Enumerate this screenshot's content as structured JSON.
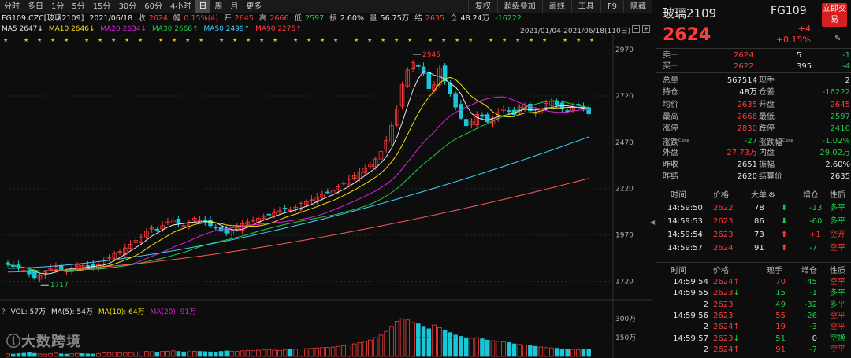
{
  "toolbar": {
    "items": [
      {
        "label": "分时",
        "active": false
      },
      {
        "label": "多日",
        "active": false
      },
      {
        "label": "1分",
        "active": false
      },
      {
        "label": "5分",
        "active": false
      },
      {
        "label": "15分",
        "active": false
      },
      {
        "label": "30分",
        "active": false
      },
      {
        "label": "60分",
        "active": false
      },
      {
        "label": "4小时",
        "active": false
      },
      {
        "label": "日",
        "active": true
      },
      {
        "label": "周",
        "active": false
      },
      {
        "label": "月",
        "active": false
      },
      {
        "label": "更多",
        "active": false
      }
    ],
    "right": [
      "复权",
      "超级叠加",
      "画线",
      "工具",
      "F9",
      "隐藏"
    ]
  },
  "info": {
    "name": "FG109.CZC[玻璃2109]",
    "date": "2021/06/18",
    "close_label": "收",
    "close": "2624",
    "amp_label": "幅",
    "amp": "0.15%(4)",
    "open_label": "开",
    "open": "2645",
    "high_label": "高",
    "high": "2666",
    "low_label": "低",
    "low": "2597",
    "swing_label": "振",
    "swing": "2.60%",
    "vol_label": "量",
    "vol": "56.75万",
    "settle_label": "结",
    "settle": "2635",
    "oi_label": "仓",
    "oi": "48.24万",
    "oichg": "-16222"
  },
  "ma": {
    "ma5": "MA5 2647↓",
    "ma10": "MA10 2646↓",
    "ma20": "MA20 2634↓",
    "ma30": "MA30 2668↑",
    "ma50": "MA50 2499↑",
    "ma90": "MA90 2275↑"
  },
  "range": "2021/01/04-2021/06/18(110日)",
  "annot": {
    "high": "2945",
    "low": "1717"
  },
  "vol_info": {
    "vol": "VOL: 57万",
    "ma5": "MA(5): 54万",
    "ma10": "MA(10): 64万",
    "ma20": "MA(20): 91万",
    "q": "?"
  },
  "watermark": "大数跨境",
  "colors": {
    "up": "#ff3b3b",
    "down": "#18c8d8",
    "ma5": "#e8e8e8",
    "ma10": "#f4e000",
    "ma20": "#e020e0",
    "ma30": "#1fcc47",
    "ma50": "#40d0ff",
    "ma90": "#ff5a5a"
  },
  "right": {
    "title": "玻璃2109",
    "code": "FG109",
    "price": "2624",
    "chg": "+4",
    "pct": "+0.15%",
    "btn": "立即交易",
    "edit": "✎",
    "orderbook": [
      {
        "label": "卖一",
        "price": "2624",
        "vol": "5",
        "chg": "-1"
      },
      {
        "label": "买一",
        "price": "2622",
        "vol": "395",
        "chg": "-4"
      }
    ],
    "stats": [
      {
        "l1": "总量",
        "v1": "567514",
        "l2": "现手",
        "v2": "2",
        "c1": "white",
        "c2": "white"
      },
      {
        "l1": "持仓",
        "v1": "48万",
        "l2": "仓差",
        "v2": "-16222",
        "c1": "white",
        "c2": "green"
      },
      {
        "l1": "均价",
        "v1": "2635",
        "l2": "开盘",
        "v2": "2645",
        "c1": "red",
        "c2": "red"
      },
      {
        "l1": "最高",
        "v1": "2666",
        "l2": "最低",
        "v2": "2597",
        "c1": "red",
        "c2": "green"
      },
      {
        "l1": "涨停",
        "v1": "2830",
        "l2": "跌停",
        "v2": "2410",
        "c1": "red",
        "c2": "green"
      },
      {
        "l1": "涨跌",
        "v1": "-27",
        "l2": "涨跌幅",
        "v2": "-1.02%",
        "c1": "green",
        "c2": "green",
        "sup1": "Close",
        "sup2": "Close"
      },
      {
        "l1": "外盘",
        "v1": "27.73万",
        "l2": "内盘",
        "v2": "29.02万",
        "c1": "red",
        "c2": "green"
      },
      {
        "l1": "昨收",
        "v1": "2651",
        "l2": "振幅",
        "v2": "2.60%",
        "c1": "white",
        "c2": "white"
      },
      {
        "l1": "昨结",
        "v1": "2620",
        "l2": "结算价",
        "v2": "2635",
        "c1": "white",
        "c2": "white"
      }
    ],
    "tick_header": [
      "时间",
      "价格",
      "大单",
      "⚙",
      "增仓",
      "性质"
    ],
    "big_ticks": [
      {
        "t": "14:59:50",
        "p": "2622",
        "v": "78",
        "d": "down",
        "oi": "-13",
        "n": "多平",
        "nc": "green"
      },
      {
        "t": "14:59:53",
        "p": "2623",
        "v": "86",
        "d": "down",
        "oi": "-60",
        "n": "多平",
        "nc": "green"
      },
      {
        "t": "14:59:54",
        "p": "2623",
        "v": "73",
        "d": "up",
        "oi": "+1",
        "n": "空开",
        "nc": "red"
      },
      {
        "t": "14:59:57",
        "p": "2624",
        "v": "91",
        "d": "up",
        "oi": "-7",
        "n": "空平",
        "nc": "red"
      }
    ],
    "tick_header2": [
      "时间",
      "价格",
      "现手",
      "增仓",
      "性质"
    ],
    "ticks": [
      {
        "t": "14:59:54",
        "p": "2624",
        "a": "↑",
        "ac": "red",
        "pc": "red",
        "v": "70",
        "vc": "red",
        "oi": "-45",
        "n": "空平",
        "nc": "red"
      },
      {
        "t": "14:59:55",
        "p": "2623",
        "a": "↓",
        "ac": "green",
        "pc": "red",
        "v": "15",
        "vc": "green",
        "oi": "-1",
        "n": "多平",
        "nc": "green"
      },
      {
        "t": "2",
        "p": "2623",
        "a": "",
        "ac": "",
        "pc": "red",
        "v": "49",
        "vc": "green",
        "oi": "-32",
        "n": "多平",
        "nc": "green"
      },
      {
        "t": "14:59:56",
        "p": "2623",
        "a": "",
        "ac": "",
        "pc": "red",
        "v": "55",
        "vc": "red",
        "oi": "-26",
        "n": "空平",
        "nc": "red"
      },
      {
        "t": "2",
        "p": "2624",
        "a": "↑",
        "ac": "red",
        "pc": "red",
        "v": "19",
        "vc": "red",
        "oi": "-3",
        "n": "空平",
        "nc": "red"
      },
      {
        "t": "14:59:57",
        "p": "2623",
        "a": "↓",
        "ac": "green",
        "pc": "red",
        "v": "51",
        "vc": "green",
        "oi": "0",
        "n": "空换",
        "nc": "green"
      },
      {
        "t": "2",
        "p": "2624",
        "a": "↑",
        "ac": "red",
        "pc": "red",
        "v": "91",
        "vc": "red",
        "oi": "-7",
        "n": "空平",
        "nc": "red"
      }
    ]
  },
  "chart_data": {
    "type": "candlestick",
    "title": "",
    "yaxis": [
      "2970",
      "2720",
      "2470",
      "2220",
      "1970",
      "1720"
    ],
    "ylim": [
      1650,
      3000
    ],
    "vol_axis": [
      "300万",
      "150万"
    ],
    "closes": [
      1810,
      1800,
      1790,
      1780,
      1760,
      1740,
      1750,
      1770,
      1790,
      1800,
      1785,
      1775,
      1790,
      1810,
      1805,
      1800,
      1795,
      1810,
      1830,
      1850,
      1870,
      1880,
      1900,
      1920,
      1940,
      1960,
      1990,
      2010,
      2000,
      2020,
      2040,
      2050,
      2030,
      2020,
      2040,
      2060,
      2050,
      2040,
      2020,
      2010,
      1990,
      1980,
      1995,
      2010,
      2030,
      2040,
      2050,
      2060,
      2070,
      2080,
      2090,
      2100,
      2110,
      2105,
      2120,
      2140,
      2150,
      2160,
      2175,
      2190,
      2200,
      2210,
      2230,
      2250,
      2270,
      2290,
      2310,
      2330,
      2350,
      2380,
      2420,
      2480,
      2560,
      2650,
      2780,
      2860,
      2900,
      2880,
      2840,
      2760,
      2780,
      2870,
      2800,
      2730,
      2660,
      2600,
      2560,
      2580,
      2620,
      2610,
      2580,
      2600,
      2630,
      2650,
      2640,
      2620,
      2660,
      2670,
      2640,
      2630,
      2650,
      2680,
      2690,
      2670,
      2650,
      2640,
      2660,
      2670,
      2651,
      2624
    ],
    "ma50_end": 2499,
    "ma90_end": 2275,
    "vol_values": [
      20,
      18,
      22,
      25,
      30,
      24,
      20,
      18,
      22,
      26,
      20,
      18,
      21,
      24,
      22,
      20,
      19,
      23,
      28,
      30,
      32,
      28,
      26,
      30,
      34,
      36,
      40,
      38,
      35,
      40,
      42,
      45,
      40,
      36,
      38,
      42,
      40,
      38,
      36,
      34,
      40,
      44,
      42,
      40,
      45,
      48,
      46,
      50,
      52,
      55,
      50,
      48,
      52,
      55,
      58,
      60,
      62,
      65,
      68,
      70,
      72,
      75,
      80,
      85,
      90,
      100,
      110,
      120,
      130,
      150,
      170,
      200,
      240,
      280,
      300,
      290,
      270,
      260,
      240,
      220,
      250,
      230,
      210,
      190,
      170,
      160,
      150,
      145,
      150,
      140,
      130,
      125,
      120,
      115,
      110,
      100,
      95,
      90,
      85,
      80,
      75,
      70,
      68,
      65,
      60,
      58,
      56,
      55,
      57,
      57
    ]
  }
}
